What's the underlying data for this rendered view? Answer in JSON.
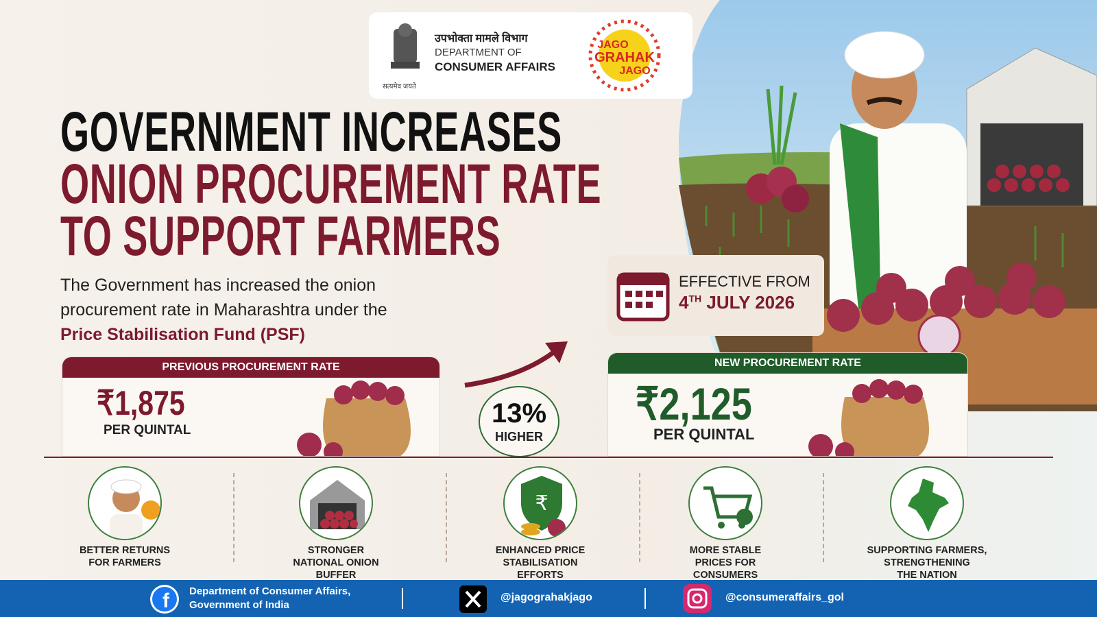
{
  "header": {
    "dept_hindi": "उपभोक्ता मामले विभाग",
    "dept_line1": "DEPARTMENT OF",
    "dept_line2": "CONSUMER AFFAIRS",
    "emblem_motto": "सत्यमेव जयते",
    "logo": [
      "JAGO",
      "GRAHAK",
      "JAGO"
    ]
  },
  "headline": [
    "GOVERNMENT INCREASES",
    "ONION PROCUREMENT RATE",
    "TO SUPPORT FARMERS"
  ],
  "description": {
    "lines": [
      "The Government has increased the onion",
      "procurement rate in Maharashtra under the"
    ],
    "highlight": "Price Stabilisation Fund (PSF)"
  },
  "effective": {
    "label": "EFFECTIVE FROM",
    "day": "4",
    "suffix": "TH",
    "month_year": "JULY 2026"
  },
  "previous": {
    "label": "PREVIOUS PROCUREMENT RATE",
    "amount": "₹1,875",
    "unit": "PER QUINTAL"
  },
  "increase": {
    "value": "13%",
    "label": "HIGHER"
  },
  "new": {
    "label": "NEW PROCUREMENT RATE",
    "amount": "₹2,125",
    "unit": "PER QUINTAL"
  },
  "benefits": [
    [
      "BETTER RETURNS",
      "FOR FARMERS"
    ],
    [
      "STRONGER",
      "NATIONAL ONION",
      "BUFFER"
    ],
    [
      "ENHANCED PRICE",
      "STABILISATION",
      "EFFORTS"
    ],
    [
      "MORE STABLE",
      "PRICES FOR",
      "CONSUMERS"
    ],
    [
      "SUPPORTING FARMERS,",
      "STRENGTHENING",
      "THE NATION"
    ]
  ],
  "footer": {
    "facebook": [
      "Department of Consumer Affairs,",
      "Government of India"
    ],
    "x_handle": "@jagograhakjago",
    "instagram_handle": "@consumeraffairs_gol"
  }
}
